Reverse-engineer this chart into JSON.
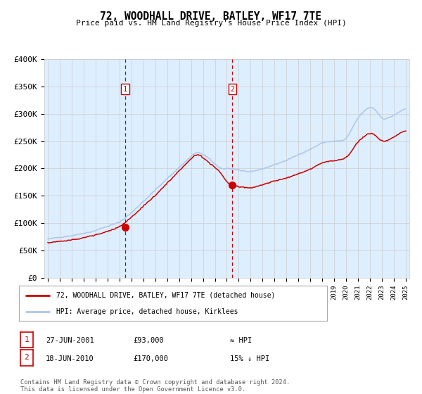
{
  "title": "72, WOODHALL DRIVE, BATLEY, WF17 7TE",
  "subtitle": "Price paid vs. HM Land Registry's House Price Index (HPI)",
  "legend_line1": "72, WOODHALL DRIVE, BATLEY, WF17 7TE (detached house)",
  "legend_line2": "HPI: Average price, detached house, Kirklees",
  "annotation1_date": "27-JUN-2001",
  "annotation1_price": "£93,000",
  "annotation1_hpi": "≈ HPI",
  "annotation2_date": "18-JUN-2010",
  "annotation2_price": "£170,000",
  "annotation2_hpi": "15% ↓ HPI",
  "footer": "Contains HM Land Registry data © Crown copyright and database right 2024.\nThis data is licensed under the Open Government Licence v3.0.",
  "hpi_color": "#aec6e8",
  "price_color": "#cc0000",
  "marker_color": "#cc0000",
  "dashed_color": "#cc0000",
  "shade_color": "#ddeeff",
  "background_color": "#ffffff",
  "grid_color": "#cccccc",
  "ylim": [
    0,
    400000
  ],
  "yticks": [
    0,
    50000,
    100000,
    150000,
    200000,
    250000,
    300000,
    350000,
    400000
  ],
  "x_start_year": 1995,
  "x_end_year": 2025,
  "vline1_year": 2001.49,
  "vline2_year": 2010.46,
  "marker1_year": 2001.49,
  "marker1_price": 93000,
  "marker2_year": 2010.46,
  "marker2_price": 170000,
  "hpi_anchors_x": [
    1995,
    1997,
    1999,
    2001,
    2002,
    2004,
    2007.5,
    2008.5,
    2009.5,
    2010,
    2011,
    2012,
    2013,
    2015,
    2017,
    2018,
    2020,
    2021,
    2022,
    2022.5,
    2023,
    2024,
    2025
  ],
  "hpi_anchors_y": [
    70000,
    76000,
    85000,
    100000,
    118000,
    160000,
    232000,
    220000,
    198000,
    202000,
    198000,
    194000,
    200000,
    215000,
    235000,
    248000,
    252000,
    295000,
    315000,
    310000,
    288000,
    298000,
    312000
  ],
  "price_anchors_x": [
    1995,
    1997,
    1999,
    2001,
    2002,
    2004,
    2007.5,
    2008.5,
    2009.5,
    2010,
    2011,
    2012,
    2013,
    2015,
    2017,
    2018,
    2020,
    2021,
    2022,
    2022.5,
    2023,
    2024,
    2025
  ],
  "price_anchors_y": [
    65000,
    70000,
    78000,
    93000,
    110000,
    150000,
    228000,
    210000,
    192000,
    170000,
    165000,
    162000,
    170000,
    182000,
    198000,
    212000,
    218000,
    252000,
    268000,
    262000,
    248000,
    258000,
    272000
  ]
}
